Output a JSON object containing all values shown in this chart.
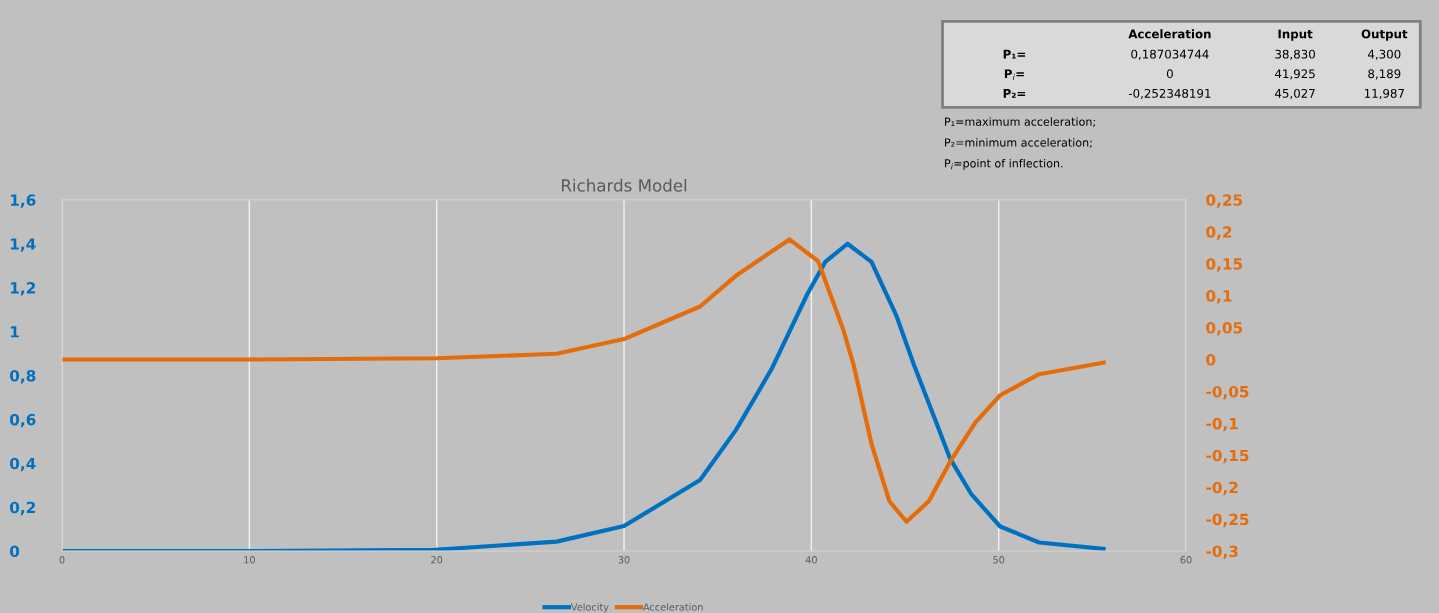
{
  "chart_data": {
    "type": "line",
    "title": "Richards Model",
    "xlim": [
      0,
      60
    ],
    "xticks": [
      0,
      10,
      20,
      30,
      40,
      50,
      60
    ],
    "ylim": [
      0,
      1.6
    ],
    "yticks": [
      0,
      {
        "value": 0.2,
        "label": "0,2"
      },
      {
        "value": 0.4,
        "label": "0,4"
      },
      {
        "value": 0.6,
        "label": "0,6"
      },
      {
        "value": 0.8,
        "label": "0,8"
      },
      1,
      {
        "value": 1.2,
        "label": "1,2"
      },
      {
        "value": 1.4,
        "label": "1,4"
      },
      {
        "value": 1.6,
        "label": "1,6"
      }
    ],
    "y2lim": [
      -0.3,
      0.25
    ],
    "y2ticks": [
      {
        "value": -0.3,
        "label": "-0,3"
      },
      {
        "value": -0.25,
        "label": "-0,25"
      },
      {
        "value": -0.2,
        "label": "-0,2"
      },
      {
        "value": -0.15,
        "label": "-0,15"
      },
      {
        "value": -0.1,
        "label": "-0,1"
      },
      {
        "value": -0.05,
        "label": "-0,05"
      },
      0,
      {
        "value": 0.05,
        "label": "0,05"
      },
      {
        "value": 0.1,
        "label": "0,1"
      },
      {
        "value": 0.15,
        "label": "0,15"
      },
      {
        "value": 0.2,
        "label": "0,2"
      },
      {
        "value": 0.25,
        "label": "0,25"
      }
    ],
    "series": [
      {
        "name": "Velocity",
        "color": "#0070c0",
        "x": [
          0,
          10,
          19.9,
          26.4,
          30.0,
          34.06,
          35.97,
          37.87,
          39.78,
          40.74,
          41.93,
          43.21,
          44.55,
          45.49,
          46.45,
          47.41,
          48.55,
          50.08,
          52.16,
          55.6
        ],
        "values": [
          0,
          0,
          0.006,
          0.043,
          0.114,
          0.324,
          0.551,
          0.828,
          1.17,
          1.317,
          1.4,
          1.317,
          1.07,
          0.845,
          0.634,
          0.421,
          0.258,
          0.112,
          0.039,
          0.01
        ]
      },
      {
        "name": "Acceleration",
        "color": "#e46c0a",
        "axis": "y2",
        "x": [
          0,
          10,
          20,
          26.4,
          30.0,
          34.06,
          35.97,
          38.83,
          40.36,
          41.7,
          42.26,
          43.21,
          44.17,
          45.08,
          46.27,
          47.41,
          48.75,
          50.08,
          52.16,
          55.6
        ],
        "values": [
          0,
          0,
          0.002,
          0.009,
          0.032,
          0.083,
          0.131,
          0.188,
          0.154,
          0.047,
          -0.009,
          -0.132,
          -0.222,
          -0.254,
          -0.222,
          -0.16,
          -0.099,
          -0.056,
          -0.023,
          -0.005
        ]
      }
    ],
    "grid": "x",
    "legend": "bottom",
    "marker": "none",
    "line_style": "solid",
    "annotations": [
      "Acceleration",
      "Input",
      "Output",
      "P₁=",
      "0,187034744",
      "38,830",
      "4,300",
      "P$_{i}$=",
      "0",
      "41,925",
      "8,189",
      "P₂=",
      "-0,252348191",
      "45,027",
      "11,987",
      "P₁=maximum acceleration;",
      "P₂=minimum acceleration;",
      "P$_{i}$=point of inflection."
    ]
  }
}
